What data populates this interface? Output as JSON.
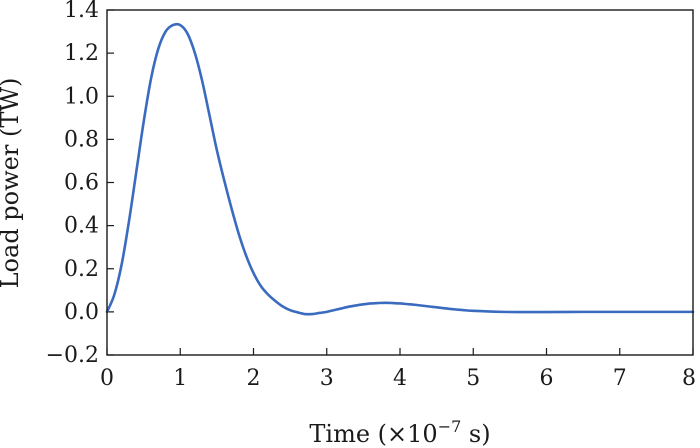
{
  "chart_data": {
    "type": "line",
    "title": "",
    "xlabel": "Time (×10",
    "xlabel_exponent": "−7",
    "xlabel_suffix": " s)",
    "ylabel": "Load power (TW)",
    "xlim": [
      0,
      8
    ],
    "ylim": [
      -0.2,
      1.4
    ],
    "xticks": [
      0,
      1,
      2,
      3,
      4,
      5,
      6,
      7,
      8
    ],
    "xtick_labels": [
      "0",
      "1",
      "2",
      "3",
      "4",
      "5",
      "6",
      "7",
      "8"
    ],
    "yticks": [
      -0.2,
      0.0,
      0.2,
      0.4,
      0.6,
      0.8,
      1.0,
      1.2,
      1.4
    ],
    "ytick_labels": [
      "−0.2",
      "0.0",
      "0.2",
      "0.4",
      "0.6",
      "0.8",
      "1.0",
      "1.2",
      "1.4"
    ],
    "grid": false,
    "series": [
      {
        "color": "#3a6bbf",
        "x": [
          0,
          0.1,
          0.2,
          0.3,
          0.4,
          0.5,
          0.6,
          0.7,
          0.8,
          0.9,
          1.0,
          1.1,
          1.2,
          1.3,
          1.4,
          1.5,
          1.6,
          1.7,
          1.8,
          1.9,
          2.0,
          2.1,
          2.2,
          2.3,
          2.4,
          2.5,
          2.6,
          2.7,
          2.8,
          2.9,
          3.0,
          3.1,
          3.2,
          3.3,
          3.4,
          3.5,
          3.6,
          3.7,
          3.8,
          3.9,
          4.0,
          4.1,
          4.2,
          4.3,
          4.4,
          4.5,
          4.6,
          4.7,
          4.8,
          4.9,
          5.0,
          5.2,
          5.4,
          5.6,
          5.8,
          6.0,
          6.5,
          7.0,
          7.5,
          8.0
        ],
        "y": [
          0.0,
          0.08,
          0.22,
          0.42,
          0.65,
          0.88,
          1.08,
          1.22,
          1.3,
          1.33,
          1.33,
          1.29,
          1.2,
          1.07,
          0.91,
          0.75,
          0.61,
          0.48,
          0.36,
          0.26,
          0.18,
          0.12,
          0.08,
          0.05,
          0.025,
          0.008,
          -0.002,
          -0.01,
          -0.01,
          -0.005,
          0.0,
          0.008,
          0.016,
          0.024,
          0.03,
          0.035,
          0.039,
          0.041,
          0.042,
          0.041,
          0.039,
          0.036,
          0.033,
          0.029,
          0.025,
          0.021,
          0.017,
          0.013,
          0.01,
          0.007,
          0.005,
          0.002,
          0.0,
          -0.001,
          -0.001,
          -0.001,
          0.0,
          0.0,
          0.0,
          0.0
        ]
      }
    ]
  }
}
